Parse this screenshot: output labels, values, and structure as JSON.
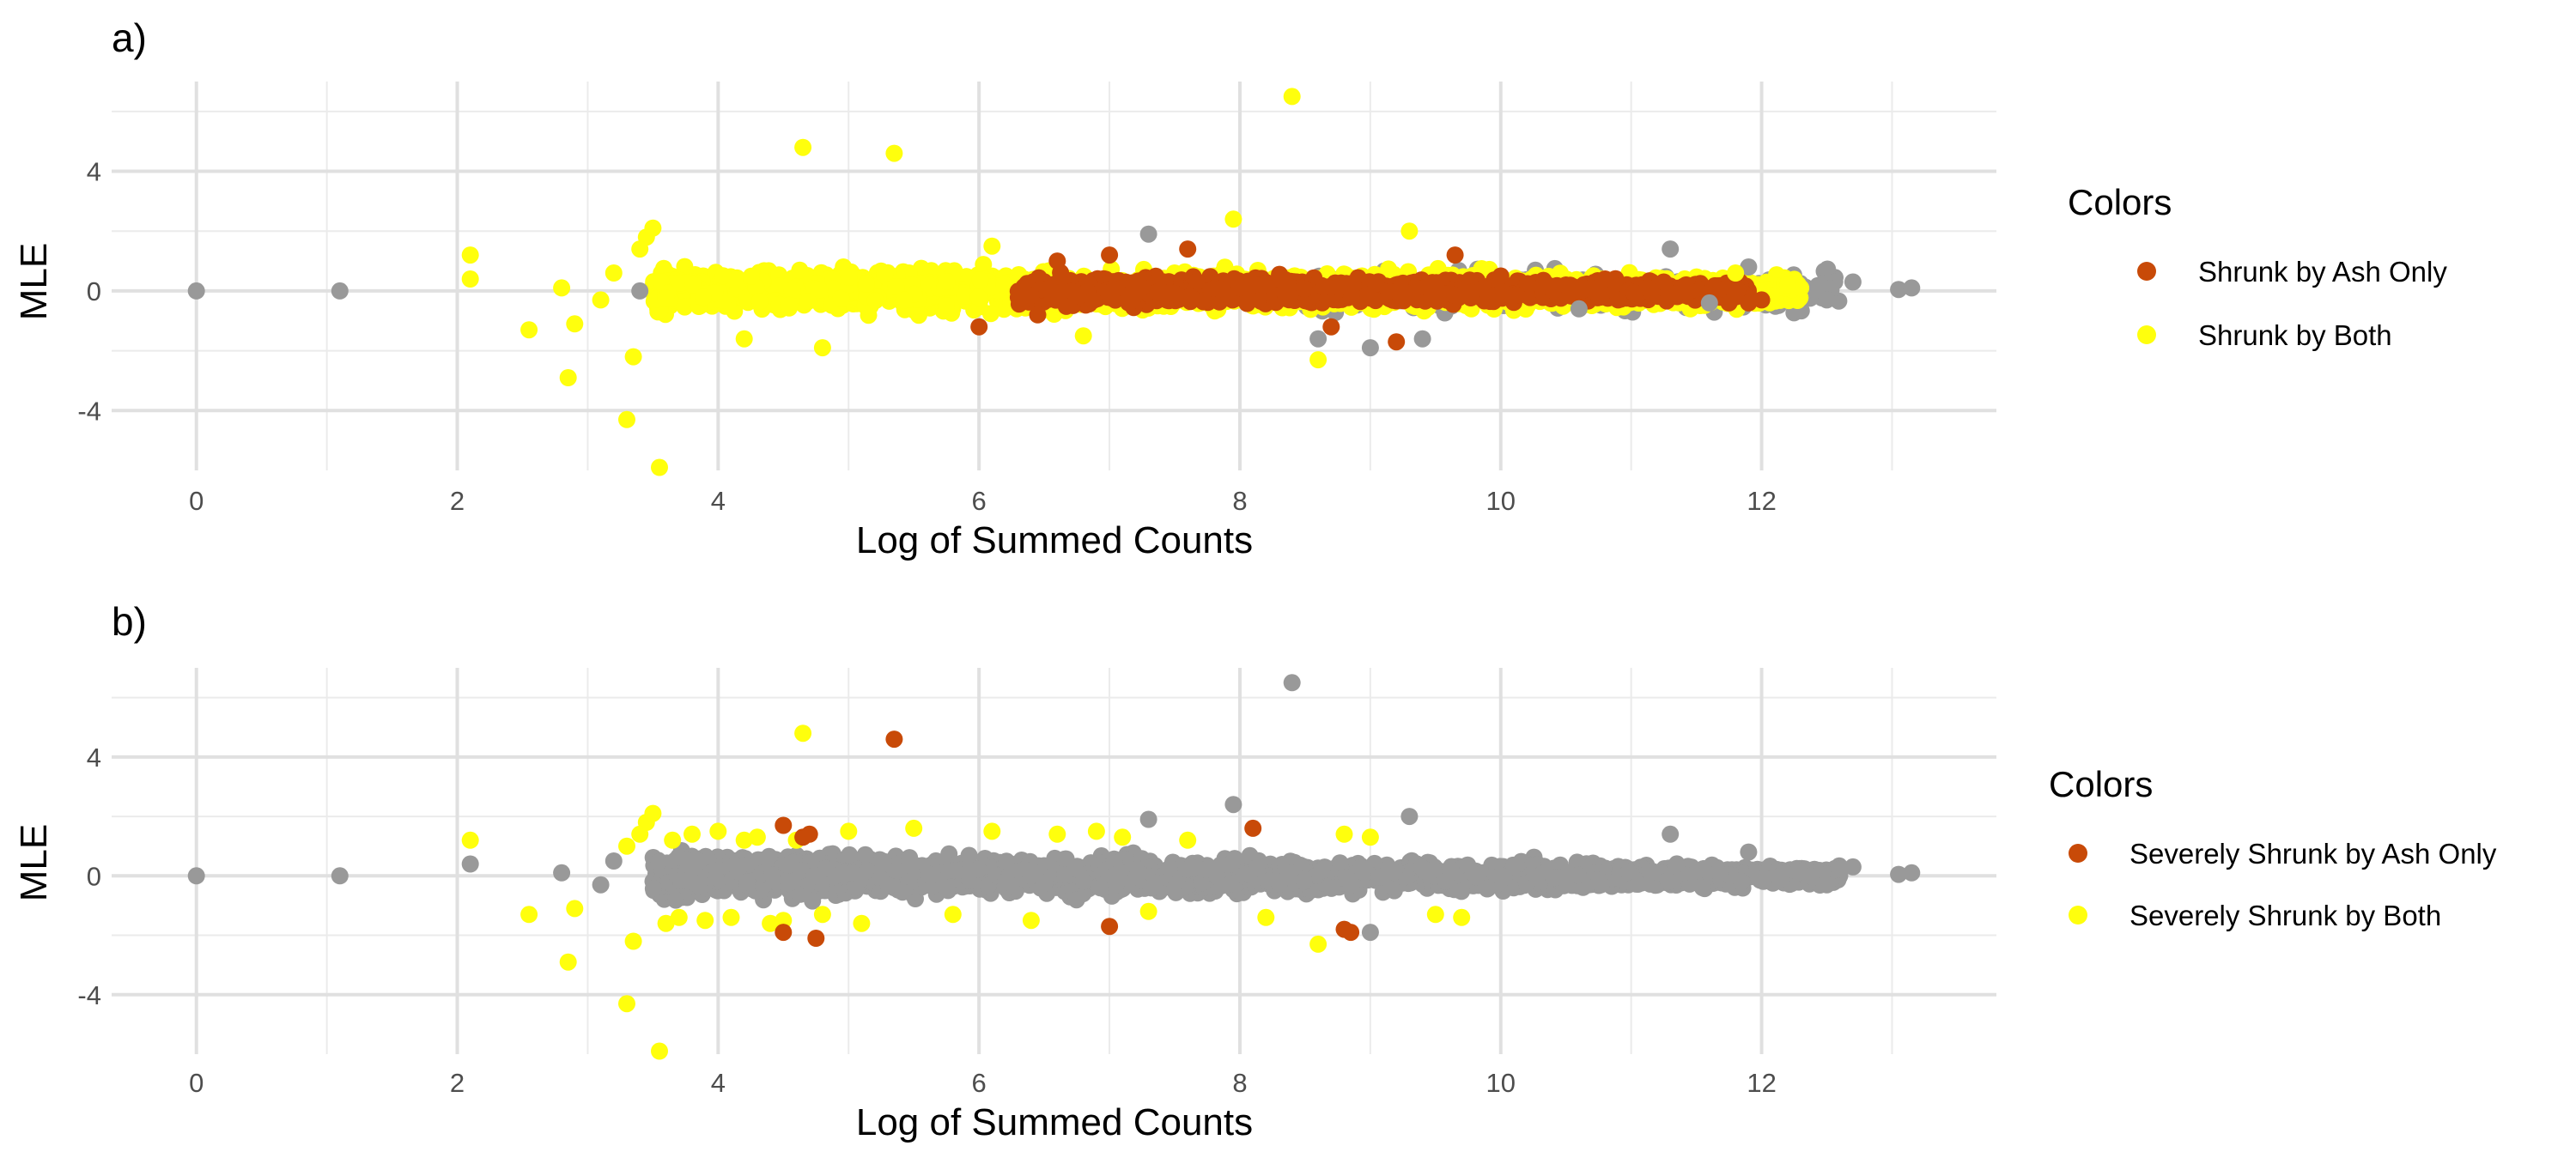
{
  "chart_data": [
    {
      "type": "scatter",
      "tag": "a)",
      "xlabel": "Log of Summed Counts",
      "ylabel": "MLE",
      "xlim": [
        -0.65,
        13.8
      ],
      "ylim": [
        -6.0,
        7.0
      ],
      "x_ticks": [
        0,
        2,
        4,
        6,
        8,
        10,
        12
      ],
      "x_tick_labels": [
        "0",
        "2",
        "4",
        "6",
        "8",
        "10",
        "12"
      ],
      "y_ticks": [
        -4,
        0,
        4
      ],
      "y_tick_labels": [
        "-4",
        "0",
        "4"
      ],
      "grid": true,
      "legend": {
        "title": "Colors",
        "position": "right",
        "entries": [
          {
            "label": "Shrunk by Ash Only",
            "color": "#C84A08"
          },
          {
            "label": "Shrunk by Both",
            "color": "#FFFF0D"
          }
        ]
      },
      "series": [
        {
          "color": "#999999",
          "points": [
            [
              0,
              0
            ],
            [
              1.1,
              0
            ],
            [
              3.4,
              0
            ],
            [
              7.3,
              1.9
            ],
            [
              9.0,
              -1.9
            ],
            [
              9.4,
              -1.6
            ],
            [
              11.3,
              1.4
            ],
            [
              11.9,
              0.8
            ],
            [
              12.5,
              -0.3
            ],
            [
              12.7,
              0.3
            ],
            [
              13.05,
              0.05
            ],
            [
              13.15,
              0.1
            ],
            [
              10.6,
              -0.6
            ],
            [
              11.6,
              -0.4
            ],
            [
              8.6,
              -1.6
            ]
          ]
        },
        {
          "color": "#FFFF0D",
          "points": [
            [
              2.1,
              1.2
            ],
            [
              2.1,
              0.4
            ],
            [
              2.55,
              -1.3
            ],
            [
              2.8,
              0.1
            ],
            [
              2.9,
              -1.1
            ],
            [
              2.85,
              -2.9
            ],
            [
              3.3,
              -4.3
            ],
            [
              3.55,
              -5.9
            ],
            [
              3.35,
              -2.2
            ],
            [
              3.45,
              1.8
            ],
            [
              3.5,
              2.1
            ],
            [
              3.4,
              1.4
            ],
            [
              4.65,
              4.8
            ],
            [
              5.35,
              4.6
            ],
            [
              8.4,
              6.5
            ],
            [
              7.95,
              2.4
            ],
            [
              9.3,
              2.0
            ],
            [
              8.6,
              -2.3
            ],
            [
              4.2,
              -1.6
            ],
            [
              4.8,
              -1.9
            ],
            [
              3.2,
              0.6
            ],
            [
              3.1,
              -0.3
            ],
            [
              12.3,
              0.1
            ],
            [
              11.8,
              0.6
            ],
            [
              12.2,
              0.2
            ],
            [
              6.1,
              1.5
            ],
            [
              6.8,
              -1.5
            ]
          ]
        },
        {
          "color": "#C84A08",
          "points": [
            [
              6.0,
              -1.2
            ],
            [
              6.45,
              -0.8
            ],
            [
              6.6,
              1.0
            ],
            [
              7.0,
              1.2
            ],
            [
              7.6,
              1.4
            ],
            [
              8.7,
              -1.2
            ],
            [
              9.2,
              -1.7
            ],
            [
              9.65,
              1.2
            ],
            [
              10.0,
              0.5
            ],
            [
              10.8,
              0.4
            ],
            [
              11.25,
              0.3
            ],
            [
              11.9,
              -0.4
            ],
            [
              11.8,
              -0.2
            ],
            [
              12.0,
              -0.3
            ],
            [
              11.75,
              -0.4
            ],
            [
              10.9,
              -0.3
            ],
            [
              10.5,
              0.2
            ]
          ]
        }
      ],
      "bands": [
        {
          "color": "#FFFF0D",
          "x_range": [
            3.5,
            12.3
          ],
          "y_spread": [
            0.85,
            0.6
          ]
        },
        {
          "color": "#C84A08",
          "x_range": [
            6.3,
            11.9
          ],
          "y_spread": [
            0.55,
            0.35
          ]
        }
      ]
    },
    {
      "type": "scatter",
      "tag": "b)",
      "xlabel": "Log of Summed Counts",
      "ylabel": "MLE",
      "xlim": [
        -0.65,
        13.8
      ],
      "ylim": [
        -6.0,
        7.0
      ],
      "x_ticks": [
        0,
        2,
        4,
        6,
        8,
        10,
        12
      ],
      "x_tick_labels": [
        "0",
        "2",
        "4",
        "6",
        "8",
        "10",
        "12"
      ],
      "y_ticks": [
        -4,
        0,
        4
      ],
      "y_tick_labels": [
        "-4",
        "0",
        "4"
      ],
      "grid": true,
      "legend": {
        "title": "Colors",
        "position": "right",
        "entries": [
          {
            "label": "Severely Shrunk by Ash Only",
            "color": "#C84A08"
          },
          {
            "label": "Severely Shrunk by Both",
            "color": "#FFFF0D"
          }
        ]
      },
      "series": [
        {
          "color": "#999999",
          "points": [
            [
              0,
              0
            ],
            [
              1.1,
              0
            ],
            [
              2.1,
              0.4
            ],
            [
              2.8,
              0.1
            ],
            [
              7.3,
              1.9
            ],
            [
              7.95,
              2.4
            ],
            [
              8.4,
              6.5
            ],
            [
              9.3,
              2.0
            ],
            [
              11.3,
              1.4
            ],
            [
              11.9,
              0.8
            ],
            [
              12.5,
              -0.3
            ],
            [
              12.7,
              0.3
            ],
            [
              13.05,
              0.05
            ],
            [
              13.15,
              0.1
            ],
            [
              9.0,
              -1.9
            ],
            [
              3.2,
              0.5
            ],
            [
              3.1,
              -0.3
            ]
          ]
        },
        {
          "color": "#FFFF0D",
          "points": [
            [
              2.1,
              1.2
            ],
            [
              2.55,
              -1.3
            ],
            [
              2.9,
              -1.1
            ],
            [
              2.85,
              -2.9
            ],
            [
              3.3,
              -4.3
            ],
            [
              3.35,
              -2.2
            ],
            [
              3.55,
              -5.9
            ],
            [
              3.45,
              1.8
            ],
            [
              3.5,
              2.1
            ],
            [
              3.4,
              1.4
            ],
            [
              3.3,
              1.0
            ],
            [
              4.65,
              4.8
            ],
            [
              8.6,
              -2.3
            ],
            [
              6.1,
              1.5
            ],
            [
              7.1,
              1.3
            ],
            [
              8.8,
              1.4
            ],
            [
              9.0,
              1.3
            ],
            [
              9.7,
              -1.4
            ],
            [
              9.5,
              -1.3
            ],
            [
              5.5,
              1.6
            ],
            [
              5.1,
              -1.6
            ],
            [
              6.6,
              1.4
            ],
            [
              7.6,
              1.2
            ],
            [
              3.8,
              1.4
            ],
            [
              3.9,
              -1.5
            ],
            [
              4.0,
              1.5
            ],
            [
              4.1,
              -1.4
            ],
            [
              4.3,
              1.3
            ],
            [
              4.4,
              -1.6
            ],
            [
              4.6,
              1.2
            ],
            [
              4.8,
              -1.3
            ],
            [
              5.0,
              1.5
            ],
            [
              6.4,
              -1.5
            ],
            [
              7.3,
              -1.2
            ],
            [
              8.2,
              -1.4
            ],
            [
              3.65,
              1.2
            ],
            [
              3.7,
              -1.4
            ],
            [
              4.2,
              1.2
            ],
            [
              5.8,
              -1.3
            ],
            [
              6.9,
              1.5
            ],
            [
              4.5,
              -1.5
            ],
            [
              3.6,
              -1.6
            ]
          ]
        },
        {
          "color": "#C84A08",
          "points": [
            [
              4.5,
              1.7
            ],
            [
              4.7,
              1.4
            ],
            [
              4.65,
              1.3
            ],
            [
              5.35,
              4.6
            ],
            [
              4.5,
              -1.9
            ],
            [
              4.75,
              -2.1
            ],
            [
              7.0,
              -1.7
            ],
            [
              8.1,
              1.6
            ],
            [
              8.85,
              -1.9
            ],
            [
              8.8,
              -1.8
            ]
          ]
        }
      ],
      "bands": [
        {
          "color": "#999999",
          "x_range": [
            3.5,
            12.6
          ],
          "y_spread": [
            0.9,
            0.4
          ]
        }
      ]
    }
  ]
}
